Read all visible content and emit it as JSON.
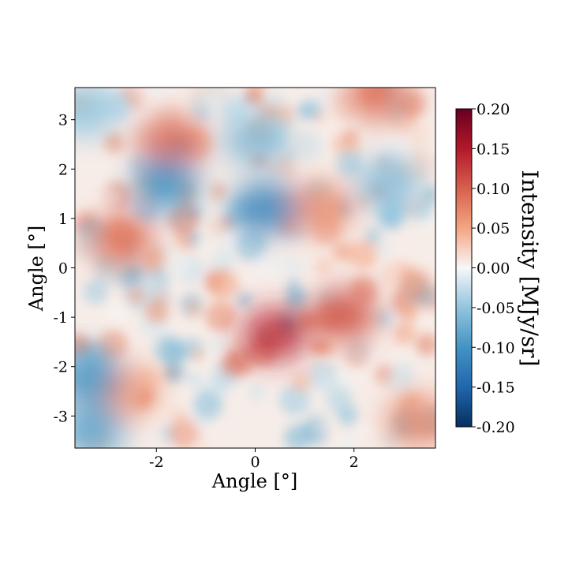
{
  "chart_data": {
    "type": "heatmap",
    "title": "",
    "xlabel": "Angle [°]",
    "ylabel": "Angle [°]",
    "xlim": [
      -3.65,
      3.65
    ],
    "ylim": [
      -3.65,
      3.65
    ],
    "xticks": [
      -2,
      0,
      2
    ],
    "xtick_labels": [
      "-2",
      "0",
      "2"
    ],
    "yticks": [
      3,
      2,
      1,
      0,
      -1,
      -2,
      -3
    ],
    "ytick_labels": [
      "3",
      "2",
      "1",
      "0",
      "-1",
      "-2",
      "-3"
    ],
    "colormap": "RdBu_r",
    "colorbar": {
      "label": "Intensity [MJy/sr]",
      "range": [
        -0.2,
        0.2
      ],
      "ticks": [
        0.2,
        0.15,
        0.1,
        0.05,
        0.0,
        -0.05,
        -0.1,
        -0.15,
        -0.2
      ],
      "tick_labels": [
        "0.20",
        "0.15",
        "0.10",
        "0.05",
        "0.00",
        "-0.05",
        "-0.10",
        "-0.15",
        "-0.20"
      ],
      "colors": {
        "top": "#67001f",
        "upper": "#d6604d",
        "mid": "#f7f7f7",
        "lower": "#4393c3",
        "bottom": "#053061"
      }
    },
    "grid": false,
    "features": [
      {
        "x": 0.4,
        "y": -1.35,
        "value": 0.14
      },
      {
        "x": 1.8,
        "y": -0.95,
        "value": 0.11
      },
      {
        "x": -1.7,
        "y": 2.55,
        "value": 0.1
      },
      {
        "x": -2.7,
        "y": 0.55,
        "value": 0.09
      },
      {
        "x": 2.5,
        "y": 3.5,
        "value": 0.09
      },
      {
        "x": 1.3,
        "y": 1.2,
        "value": 0.07
      },
      {
        "x": 3.3,
        "y": -3.1,
        "value": 0.07
      },
      {
        "x": -2.6,
        "y": -2.5,
        "value": 0.06
      },
      {
        "x": 0.2,
        "y": 1.2,
        "value": -0.12
      },
      {
        "x": -1.8,
        "y": 1.7,
        "value": -0.1
      },
      {
        "x": -3.4,
        "y": -2.2,
        "value": -0.1
      },
      {
        "x": -3.3,
        "y": -3.3,
        "value": -0.08
      },
      {
        "x": 2.7,
        "y": 1.7,
        "value": -0.06
      },
      {
        "x": 0.0,
        "y": 2.6,
        "value": -0.06
      },
      {
        "x": -3.4,
        "y": 3.2,
        "value": -0.05
      }
    ]
  }
}
